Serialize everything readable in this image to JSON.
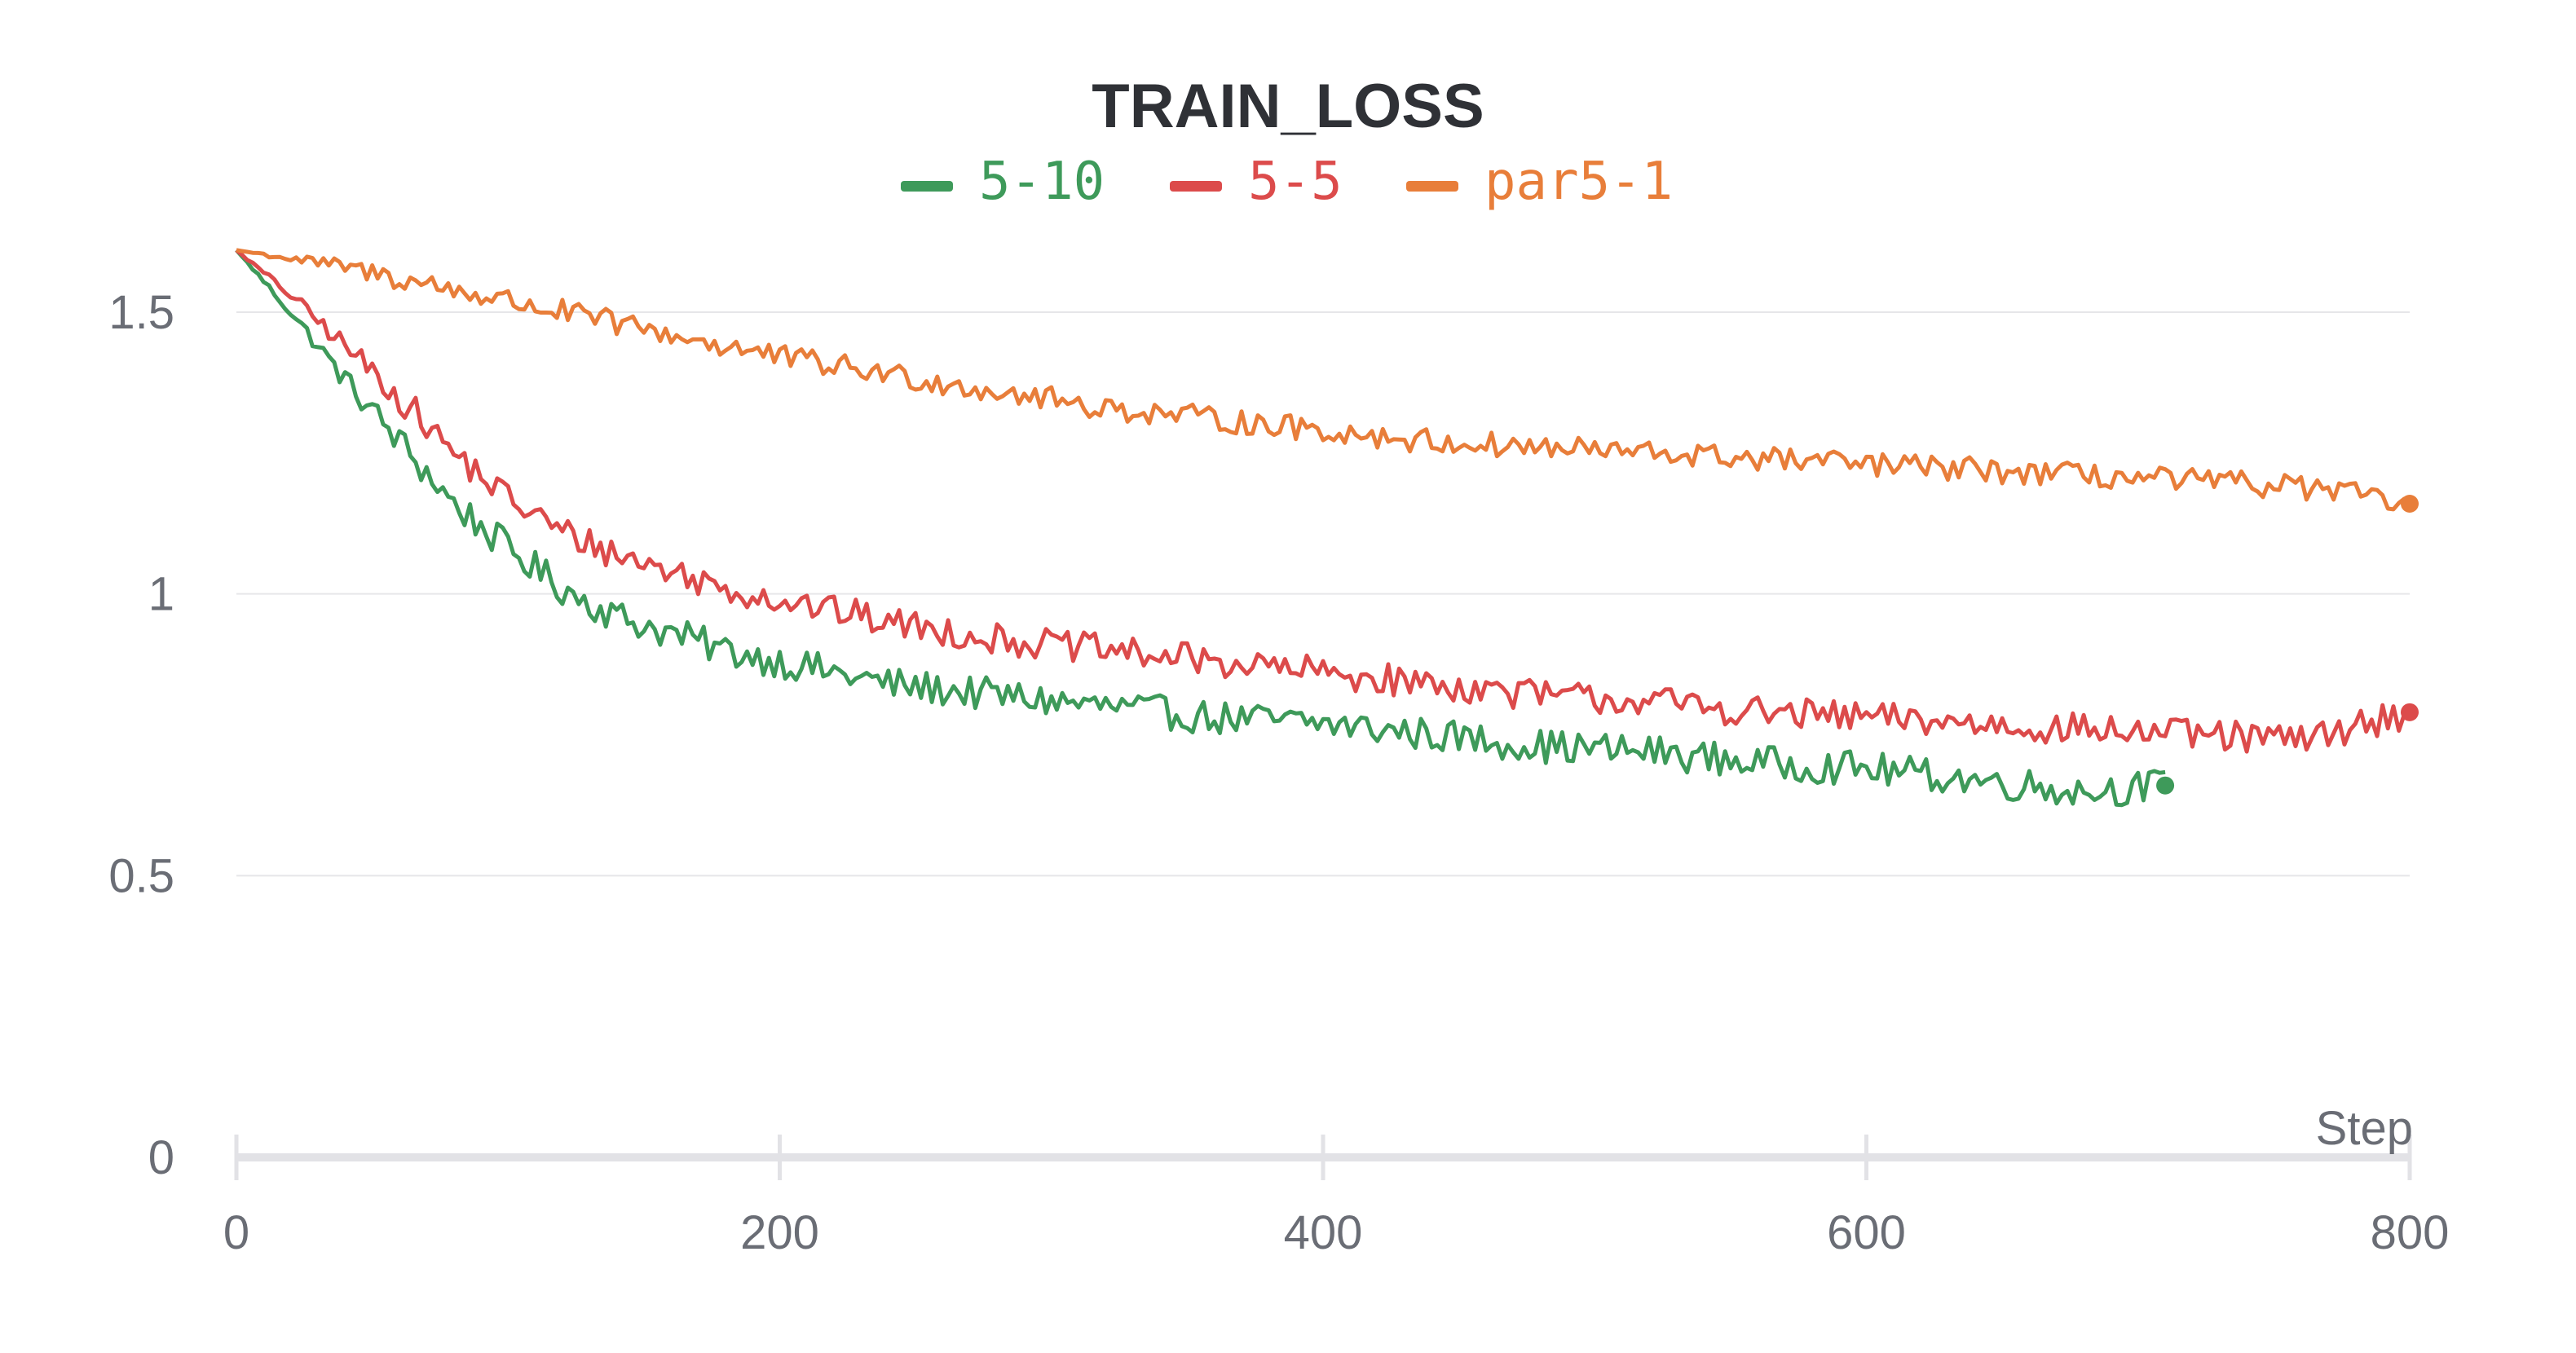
{
  "chart_data": {
    "type": "line",
    "title": "TRAIN_LOSS",
    "xlabel": "Step",
    "ylabel": "",
    "xlim": [
      0,
      800
    ],
    "ylim": [
      0,
      1.62
    ],
    "x_ticks": [
      "0",
      "200",
      "400",
      "600",
      "800"
    ],
    "y_ticks": [
      "0",
      "0.5",
      "1",
      "1.5"
    ],
    "grid": true,
    "legend_position": "top",
    "series": [
      {
        "name": "5-10",
        "color": "#3e9a5a",
        "x": [
          0,
          20,
          40,
          60,
          80,
          100,
          120,
          140,
          160,
          180,
          200,
          240,
          280,
          320,
          360,
          400,
          440,
          480,
          520,
          560,
          600,
          640,
          680,
          710
        ],
        "y": [
          1.61,
          1.5,
          1.38,
          1.27,
          1.16,
          1.08,
          1.01,
          0.96,
          0.93,
          0.9,
          0.88,
          0.84,
          0.82,
          0.8,
          0.78,
          0.77,
          0.75,
          0.73,
          0.72,
          0.7,
          0.69,
          0.67,
          0.65,
          0.66
        ]
      },
      {
        "name": "5-5",
        "color": "#dc4b4b",
        "x": [
          0,
          20,
          40,
          60,
          80,
          100,
          120,
          140,
          160,
          180,
          200,
          240,
          280,
          320,
          360,
          400,
          440,
          480,
          520,
          560,
          600,
          640,
          680,
          720,
          760,
          800
        ],
        "y": [
          1.61,
          1.53,
          1.44,
          1.35,
          1.25,
          1.17,
          1.11,
          1.07,
          1.04,
          1.01,
          0.99,
          0.95,
          0.92,
          0.9,
          0.88,
          0.86,
          0.84,
          0.82,
          0.81,
          0.79,
          0.78,
          0.77,
          0.76,
          0.75,
          0.74,
          0.79
        ]
      },
      {
        "name": "par5-1",
        "color": "#e87e3a",
        "x": [
          0,
          40,
          80,
          120,
          160,
          200,
          240,
          280,
          320,
          360,
          400,
          440,
          480,
          520,
          560,
          600,
          640,
          680,
          720,
          760,
          800
        ],
        "y": [
          1.61,
          1.58,
          1.54,
          1.5,
          1.46,
          1.42,
          1.39,
          1.36,
          1.33,
          1.31,
          1.29,
          1.27,
          1.26,
          1.25,
          1.24,
          1.23,
          1.22,
          1.21,
          1.2,
          1.19,
          1.16
        ]
      }
    ]
  }
}
